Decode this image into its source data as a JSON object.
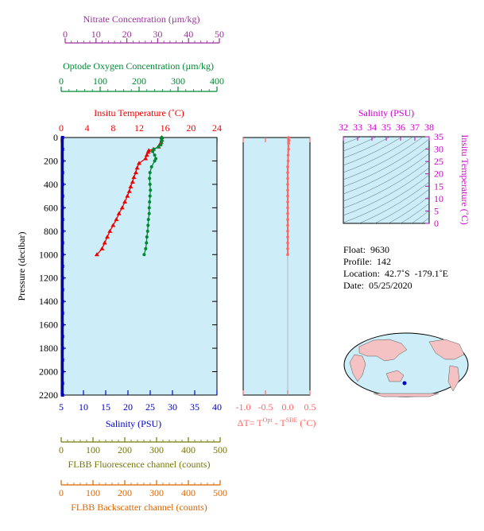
{
  "colors": {
    "nitrate": "#993399",
    "oxygen": "#008833",
    "temperature": "#ee0000",
    "salinity": "#0000cc",
    "fluorescence": "#777700",
    "backscatter": "#dd6600",
    "dt": "#ff6666",
    "ts_axis": "#cc00cc",
    "plot_bg": "#cdeef8"
  },
  "axes": {
    "nitrate": {
      "label": "Nitrate Concentration (µm/kg)",
      "range": [
        0,
        50
      ],
      "ticks": [
        "0",
        "10",
        "20",
        "30",
        "40",
        "50"
      ]
    },
    "oxygen": {
      "label": "Optode Oxygen Concentration (µm/kg)",
      "range": [
        0,
        400
      ],
      "ticks": [
        "0",
        "100",
        "200",
        "300",
        "400"
      ]
    },
    "temperature": {
      "label": "Insitu Temperature (˚C)",
      "range": [
        0,
        24
      ],
      "ticks": [
        "0",
        "4",
        "8",
        "12",
        "16",
        "20",
        "24"
      ]
    },
    "pressure": {
      "label": "Pressure (decibar)",
      "range": [
        0,
        2200
      ],
      "ticks": [
        "0",
        "200",
        "400",
        "600",
        "800",
        "1000",
        "1200",
        "1400",
        "1600",
        "1800",
        "2000",
        "2200"
      ]
    },
    "salinity": {
      "label": "Salinity (PSU)",
      "range": [
        5,
        40
      ],
      "ticks": [
        "5",
        "10",
        "15",
        "20",
        "25",
        "30",
        "35",
        "40"
      ]
    },
    "fluorescence": {
      "label": "FLBB Fluorescence channel (counts)",
      "range": [
        0,
        500
      ],
      "ticks": [
        "0",
        "100",
        "200",
        "300",
        "400",
        "500"
      ]
    },
    "backscatter": {
      "label": "FLBB Backscatter channel (counts)",
      "range": [
        0,
        500
      ],
      "ticks": [
        "0",
        "100",
        "200",
        "300",
        "400",
        "500"
      ]
    },
    "dt": {
      "label": "ΔT= T",
      "sup1": "Opt",
      "mid": " - T",
      "sup2": "SBE",
      "unit": " (˚C)",
      "range": [
        -1.0,
        0.5
      ],
      "ticks": [
        "-1.0",
        "-0.5",
        "0.0",
        "0.5"
      ]
    },
    "ts_salinity": {
      "label": "Salinity (PSU)",
      "range": [
        32,
        38
      ],
      "ticks": [
        "32",
        "33",
        "34",
        "35",
        "36",
        "37",
        "38"
      ]
    },
    "ts_temperature": {
      "label": "Insitu Temperature (˚C)",
      "range": [
        0,
        35
      ],
      "ticks": [
        "0",
        "5",
        "10",
        "15",
        "20",
        "25",
        "30",
        "35"
      ]
    }
  },
  "info": {
    "float": "Float:  9630",
    "profile": "Profile:  142",
    "location": "Location:  42.7˚S  -179.1˚E",
    "date": "Date:  05/25/2020"
  },
  "chart_data": [
    {
      "type": "line",
      "name": "profile",
      "series": [
        {
          "name": "Insitu Temperature",
          "axis": "temperature",
          "pressure": [
            0,
            20,
            40,
            60,
            80,
            100,
            110,
            125,
            150,
            180,
            220,
            260,
            300,
            340,
            380,
            420,
            460,
            500,
            550,
            600,
            650,
            700,
            750,
            800,
            850,
            900,
            950,
            1000
          ],
          "values": [
            15.5,
            15.5,
            15.4,
            15.2,
            15.0,
            14.2,
            13.5,
            13.4,
            13.2,
            13.0,
            12.0,
            11.7,
            11.5,
            11.2,
            11.0,
            10.7,
            10.5,
            10.2,
            9.8,
            9.4,
            8.9,
            8.5,
            8.0,
            7.5,
            7.1,
            6.7,
            6.3,
            5.5
          ]
        },
        {
          "name": "Optode Oxygen",
          "axis": "oxygen",
          "pressure": [
            0,
            20,
            40,
            60,
            80,
            100,
            120,
            150,
            180,
            200,
            250,
            300,
            350,
            400,
            450,
            500,
            550,
            600,
            650,
            700,
            750,
            800,
            850,
            900,
            950,
            1000
          ],
          "values": [
            258,
            258,
            257,
            256,
            250,
            238,
            235,
            240,
            243,
            240,
            232,
            228,
            227,
            228,
            229,
            228,
            227,
            226,
            226,
            224,
            223,
            222,
            220,
            219,
            217,
            213
          ]
        },
        {
          "name": "Salinity",
          "axis": "salinity",
          "pressure": [
            0,
            100,
            200,
            300,
            400,
            500,
            600,
            700,
            800,
            900,
            1000,
            1100,
            1200,
            1300,
            1400,
            1500,
            1600,
            1700,
            1800,
            1900,
            2000,
            2100,
            2200
          ],
          "values": [
            5.3,
            5.3,
            5.3,
            5.3,
            5.3,
            5.3,
            5.3,
            5.3,
            5.3,
            5.3,
            5.3,
            5.3,
            5.3,
            5.3,
            5.3,
            5.3,
            5.3,
            5.3,
            5.3,
            5.3,
            5.3,
            5.3,
            5.3
          ]
        }
      ],
      "xlim_temperature": [
        0,
        24
      ],
      "ylim": [
        0,
        2200
      ]
    },
    {
      "type": "line",
      "name": "delta-t",
      "series": [
        {
          "name": "ΔT",
          "pressure": [
            0,
            25,
            50,
            100,
            150,
            200,
            250,
            300,
            350,
            400,
            450,
            500,
            550,
            600,
            650,
            700,
            750,
            800,
            850,
            900,
            950,
            1000
          ],
          "values": [
            0.02,
            0.03,
            0.02,
            0.02,
            0.01,
            0.01,
            0.0,
            0.0,
            0.0,
            0.0,
            0.0,
            0.0,
            0.0,
            0.0,
            0.0,
            0.0,
            0.0,
            0.0,
            0.0,
            0.0,
            0.0,
            0.0
          ]
        }
      ],
      "xlim": [
        -1.0,
        0.5
      ],
      "ylim": [
        0,
        2200
      ]
    },
    {
      "type": "scatter",
      "name": "ts-diagram",
      "xlim": [
        32,
        38
      ],
      "ylim": [
        0,
        35
      ],
      "grid": true
    }
  ]
}
